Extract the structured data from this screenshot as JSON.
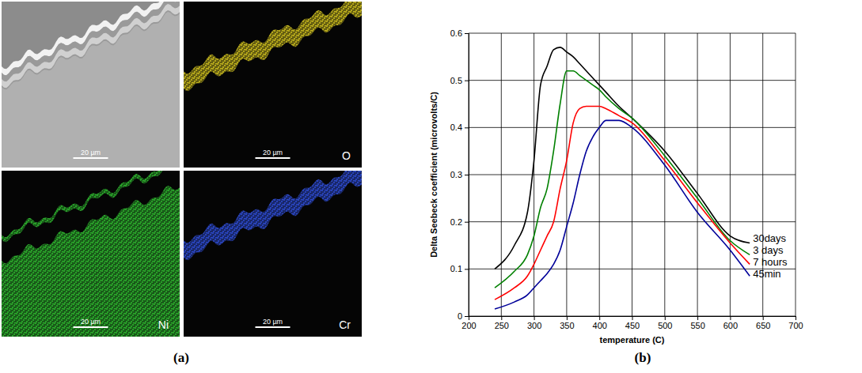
{
  "chart_data": {
    "type": "line",
    "panel_label": "(b)",
    "x_label": "temperature (C)",
    "y_label": "Delta Seebeck coefficient (microvolts/C)",
    "x": [
      240,
      270,
      290,
      300,
      310,
      320,
      330,
      340,
      350,
      360,
      370,
      380,
      390,
      400,
      410,
      430,
      450,
      500,
      550,
      600,
      630
    ],
    "series": [
      {
        "name": "30days",
        "color": "#000000",
        "values": [
          0.1,
          0.15,
          0.22,
          0.33,
          0.49,
          0.53,
          0.565,
          0.57,
          0.56,
          0.55,
          0.535,
          0.52,
          0.505,
          0.49,
          0.475,
          0.445,
          0.42,
          0.35,
          0.26,
          0.17,
          0.155
        ]
      },
      {
        "name": "3 days",
        "color": "#008000",
        "values": [
          0.06,
          0.095,
          0.13,
          0.17,
          0.23,
          0.27,
          0.35,
          0.45,
          0.52,
          0.52,
          0.51,
          0.5,
          0.49,
          0.48,
          0.465,
          0.44,
          0.42,
          0.34,
          0.25,
          0.16,
          0.13
        ]
      },
      {
        "name": "7 hours",
        "color": "#ff0000",
        "values": [
          0.035,
          0.06,
          0.085,
          0.11,
          0.14,
          0.17,
          0.2,
          0.27,
          0.33,
          0.41,
          0.44,
          0.445,
          0.445,
          0.445,
          0.44,
          0.425,
          0.41,
          0.33,
          0.24,
          0.155,
          0.11
        ]
      },
      {
        "name": "45min",
        "color": "#000099",
        "values": [
          0.015,
          0.03,
          0.045,
          0.06,
          0.075,
          0.09,
          0.11,
          0.14,
          0.19,
          0.24,
          0.3,
          0.35,
          0.38,
          0.4,
          0.415,
          0.415,
          0.4,
          0.32,
          0.22,
          0.14,
          0.085
        ]
      }
    ],
    "xlim": [
      200,
      700
    ],
    "xticks": [
      200,
      250,
      300,
      350,
      400,
      450,
      500,
      550,
      600,
      650,
      700
    ],
    "ylim": [
      0,
      0.6
    ],
    "yticks": [
      0,
      0.1,
      0.2,
      0.3,
      0.4,
      0.5,
      0.6
    ],
    "grid": true
  },
  "figure": {
    "panel_label": "(a)",
    "micrographs": [
      {
        "scale_bar": "20 µm",
        "color": "#b0b0b0"
      },
      {
        "label": "O",
        "scale_bar": "20 µm",
        "color": "#d8c820"
      },
      {
        "label": "Ni",
        "scale_bar": "20 µm",
        "color": "#30c030"
      },
      {
        "label": "Cr",
        "scale_bar": "20 µm",
        "color": "#3050e0"
      }
    ]
  }
}
